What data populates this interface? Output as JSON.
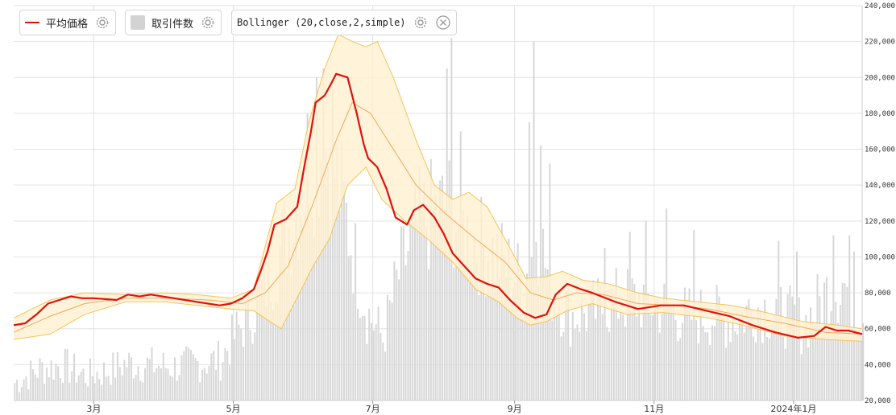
{
  "legend": {
    "avg_price_label": "平均価格",
    "volume_label": "取引件数",
    "bollinger_label": "Bollinger (20,close,2,simple)",
    "settings_icon": "gear-icon",
    "close_icon": "close-icon"
  },
  "colors": {
    "price_line": "#e0100d",
    "volume_bar": "#d6d6d6",
    "band_fill": "#fff1cf",
    "band_edge": "#f3c35a",
    "band_middle": "#f4a55a",
    "grid": "#e2e2e2"
  },
  "chart_data": {
    "type": "line",
    "y_axis": {
      "position": "right",
      "min": 20000,
      "max": 240000,
      "ticks": [
        "240,000",
        "220,000",
        "200,000",
        "180,000",
        "160,000",
        "140,000",
        "120,000",
        "100,000",
        "80,000",
        "60,000",
        "40,000",
        "20,000"
      ]
    },
    "x_axis": {
      "start": "2023-01-25",
      "end": "2024-01-31",
      "tick_labels": [
        {
          "label": "3月",
          "date": "2023-03-01"
        },
        {
          "label": "5月",
          "date": "2023-05-01"
        },
        {
          "label": "7月",
          "date": "2023-07-01"
        },
        {
          "label": "9月",
          "date": "2023-09-01"
        },
        {
          "label": "11月",
          "date": "2023-11-01"
        },
        {
          "label": "2024年1月",
          "date": "2024-01-01"
        }
      ]
    },
    "grid": true,
    "series": [
      {
        "name": "平均価格",
        "type": "line",
        "points": [
          [
            "2023-01-25",
            62000
          ],
          [
            "2023-01-30",
            63000
          ],
          [
            "2023-02-04",
            68000
          ],
          [
            "2023-02-09",
            74000
          ],
          [
            "2023-02-14",
            76000
          ],
          [
            "2023-02-19",
            78000
          ],
          [
            "2023-02-24",
            77000
          ],
          [
            "2023-03-01",
            77000
          ],
          [
            "2023-03-11",
            76000
          ],
          [
            "2023-03-16",
            79000
          ],
          [
            "2023-03-21",
            78000
          ],
          [
            "2023-03-26",
            79000
          ],
          [
            "2023-04-05",
            77000
          ],
          [
            "2023-04-15",
            75000
          ],
          [
            "2023-04-25",
            73000
          ],
          [
            "2023-04-30",
            74000
          ],
          [
            "2023-05-05",
            77000
          ],
          [
            "2023-05-10",
            82000
          ],
          [
            "2023-05-13",
            92000
          ],
          [
            "2023-05-16",
            103000
          ],
          [
            "2023-05-19",
            118000
          ],
          [
            "2023-05-24",
            121000
          ],
          [
            "2023-05-29",
            128000
          ],
          [
            "2023-06-01",
            150000
          ],
          [
            "2023-06-04",
            170000
          ],
          [
            "2023-06-06",
            186000
          ],
          [
            "2023-06-10",
            190000
          ],
          [
            "2023-06-13",
            197000
          ],
          [
            "2023-06-15",
            202000
          ],
          [
            "2023-06-20",
            200000
          ],
          [
            "2023-06-24",
            180000
          ],
          [
            "2023-06-27",
            163000
          ],
          [
            "2023-06-29",
            155000
          ],
          [
            "2023-07-03",
            150000
          ],
          [
            "2023-07-07",
            138000
          ],
          [
            "2023-07-11",
            122000
          ],
          [
            "2023-07-16",
            118000
          ],
          [
            "2023-07-19",
            126000
          ],
          [
            "2023-07-23",
            129000
          ],
          [
            "2023-07-28",
            122000
          ],
          [
            "2023-08-01",
            113000
          ],
          [
            "2023-08-05",
            102000
          ],
          [
            "2023-08-10",
            95000
          ],
          [
            "2023-08-15",
            88000
          ],
          [
            "2023-08-20",
            85000
          ],
          [
            "2023-08-25",
            83000
          ],
          [
            "2023-08-30",
            76000
          ],
          [
            "2023-09-05",
            69000
          ],
          [
            "2023-09-10",
            66000
          ],
          [
            "2023-09-15",
            68000
          ],
          [
            "2023-09-19",
            79000
          ],
          [
            "2023-09-24",
            85000
          ],
          [
            "2023-09-30",
            82000
          ],
          [
            "2023-10-05",
            80000
          ],
          [
            "2023-10-15",
            75000
          ],
          [
            "2023-10-25",
            71000
          ],
          [
            "2023-11-04",
            73000
          ],
          [
            "2023-11-14",
            73000
          ],
          [
            "2023-11-24",
            70000
          ],
          [
            "2023-12-04",
            67000
          ],
          [
            "2023-12-14",
            62000
          ],
          [
            "2023-12-24",
            58000
          ],
          [
            "2024-01-03",
            55000
          ],
          [
            "2024-01-10",
            56000
          ],
          [
            "2024-01-15",
            61000
          ],
          [
            "2024-01-20",
            59000
          ],
          [
            "2024-01-25",
            59000
          ],
          [
            "2024-01-31",
            57000
          ]
        ]
      },
      {
        "name": "取引件数",
        "type": "bar",
        "segments": [
          [
            "2023-01-25",
            30000
          ],
          [
            "2023-02-05",
            38000
          ],
          [
            "2023-02-15",
            40000
          ],
          [
            "2023-02-25",
            34000
          ],
          [
            "2023-03-05",
            36000
          ],
          [
            "2023-03-15",
            41000
          ],
          [
            "2023-03-25",
            40000
          ],
          [
            "2023-04-05",
            39000
          ],
          [
            "2023-04-15",
            41000
          ],
          [
            "2023-04-25",
            43000
          ],
          [
            "2023-05-02",
            58000
          ],
          [
            "2023-05-10",
            72000
          ],
          [
            "2023-05-18",
            95000
          ],
          [
            "2023-05-26",
            120000
          ],
          [
            "2023-06-02",
            145000
          ],
          [
            "2023-06-09",
            165000
          ],
          [
            "2023-06-15",
            145000
          ],
          [
            "2023-06-21",
            110000
          ],
          [
            "2023-06-28",
            70000
          ],
          [
            "2023-07-05",
            55000
          ],
          [
            "2023-07-12",
            90000
          ],
          [
            "2023-07-20",
            118000
          ],
          [
            "2023-07-28",
            125000
          ],
          [
            "2023-08-04",
            128000
          ],
          [
            "2023-08-12",
            110000
          ],
          [
            "2023-08-20",
            105000
          ],
          [
            "2023-08-28",
            95000
          ],
          [
            "2023-09-05",
            85000
          ],
          [
            "2023-09-10",
            120000
          ],
          [
            "2023-09-16",
            85000
          ],
          [
            "2023-09-25",
            68000
          ],
          [
            "2023-10-05",
            70000
          ],
          [
            "2023-10-15",
            75000
          ],
          [
            "2023-10-25",
            77000
          ],
          [
            "2023-11-04",
            73000
          ],
          [
            "2023-11-15",
            67000
          ],
          [
            "2023-11-25",
            68000
          ],
          [
            "2023-12-05",
            65000
          ],
          [
            "2023-12-15",
            73000
          ],
          [
            "2023-12-25",
            70000
          ],
          [
            "2024-01-05",
            62000
          ],
          [
            "2024-01-15",
            80000
          ],
          [
            "2024-01-22",
            86000
          ],
          [
            "2024-01-31",
            70000
          ]
        ],
        "spikes": [
          [
            "2023-06-02",
            180000
          ],
          [
            "2023-06-06",
            200000
          ],
          [
            "2023-06-09",
            205000
          ],
          [
            "2023-06-13",
            195000
          ],
          [
            "2023-08-04",
            222000
          ],
          [
            "2023-08-02",
            205000
          ],
          [
            "2023-08-08",
            170000
          ],
          [
            "2023-09-09",
            220000
          ],
          [
            "2023-09-07",
            175000
          ],
          [
            "2023-09-12",
            162000
          ],
          [
            "2023-09-16",
            152000
          ],
          [
            "2023-10-10",
            105000
          ],
          [
            "2023-10-21",
            114000
          ],
          [
            "2023-10-28",
            120000
          ],
          [
            "2023-11-06",
            127000
          ],
          [
            "2023-11-18",
            115000
          ],
          [
            "2023-12-25",
            109000
          ],
          [
            "2024-01-02",
            103000
          ],
          [
            "2024-01-18",
            112000
          ],
          [
            "2024-01-25",
            112000
          ],
          [
            "2024-01-27",
            103000
          ]
        ]
      },
      {
        "name": "Bollinger (20,close,2,simple)",
        "type": "band",
        "upper": [
          [
            "2023-01-25",
            66000
          ],
          [
            "2023-02-10",
            76000
          ],
          [
            "2023-02-25",
            80000
          ],
          [
            "2023-03-15",
            79000
          ],
          [
            "2023-04-01",
            80000
          ],
          [
            "2023-04-15",
            79000
          ],
          [
            "2023-04-30",
            77000
          ],
          [
            "2023-05-10",
            82000
          ],
          [
            "2023-05-20",
            130000
          ],
          [
            "2023-05-28",
            138000
          ],
          [
            "2023-06-03",
            175000
          ],
          [
            "2023-06-10",
            205000
          ],
          [
            "2023-06-16",
            224000
          ],
          [
            "2023-06-22",
            220000
          ],
          [
            "2023-06-28",
            217000
          ],
          [
            "2023-07-03",
            220000
          ],
          [
            "2023-07-10",
            200000
          ],
          [
            "2023-07-20",
            165000
          ],
          [
            "2023-07-28",
            140000
          ],
          [
            "2023-08-05",
            132000
          ],
          [
            "2023-08-12",
            136000
          ],
          [
            "2023-08-20",
            128000
          ],
          [
            "2023-08-30",
            105000
          ],
          [
            "2023-09-06",
            88000
          ],
          [
            "2023-09-15",
            89000
          ],
          [
            "2023-09-22",
            92000
          ],
          [
            "2023-10-01",
            87000
          ],
          [
            "2023-10-12",
            85000
          ],
          [
            "2023-10-25",
            80000
          ],
          [
            "2023-11-05",
            77000
          ],
          [
            "2023-11-20",
            75000
          ],
          [
            "2023-12-05",
            73000
          ],
          [
            "2023-12-20",
            69000
          ],
          [
            "2024-01-05",
            64000
          ],
          [
            "2024-01-20",
            62000
          ],
          [
            "2024-01-31",
            60000
          ]
        ],
        "middle": [
          [
            "2023-01-25",
            58000
          ],
          [
            "2023-02-10",
            67000
          ],
          [
            "2023-02-25",
            74000
          ],
          [
            "2023-03-15",
            77000
          ],
          [
            "2023-04-01",
            77000
          ],
          [
            "2023-04-20",
            76000
          ],
          [
            "2023-05-05",
            74000
          ],
          [
            "2023-05-15",
            80000
          ],
          [
            "2023-05-25",
            95000
          ],
          [
            "2023-06-05",
            130000
          ],
          [
            "2023-06-15",
            165000
          ],
          [
            "2023-06-22",
            186000
          ],
          [
            "2023-06-30",
            180000
          ],
          [
            "2023-07-10",
            160000
          ],
          [
            "2023-07-20",
            140000
          ],
          [
            "2023-08-01",
            125000
          ],
          [
            "2023-08-15",
            110000
          ],
          [
            "2023-08-28",
            97000
          ],
          [
            "2023-09-08",
            80000
          ],
          [
            "2023-09-18",
            76000
          ],
          [
            "2023-09-28",
            80000
          ],
          [
            "2023-10-10",
            79000
          ],
          [
            "2023-10-25",
            74000
          ],
          [
            "2023-11-10",
            73000
          ],
          [
            "2023-11-25",
            71000
          ],
          [
            "2023-12-10",
            67000
          ],
          [
            "2023-12-28",
            63000
          ],
          [
            "2024-01-15",
            58000
          ],
          [
            "2024-01-31",
            57000
          ]
        ],
        "lower": [
          [
            "2023-01-25",
            54000
          ],
          [
            "2023-02-10",
            57000
          ],
          [
            "2023-02-25",
            68000
          ],
          [
            "2023-03-15",
            75000
          ],
          [
            "2023-04-01",
            75000
          ],
          [
            "2023-04-15",
            73000
          ],
          [
            "2023-04-30",
            71000
          ],
          [
            "2023-05-10",
            70000
          ],
          [
            "2023-05-17",
            64000
          ],
          [
            "2023-05-22",
            60000
          ],
          [
            "2023-05-30",
            80000
          ],
          [
            "2023-06-05",
            95000
          ],
          [
            "2023-06-12",
            110000
          ],
          [
            "2023-06-20",
            140000
          ],
          [
            "2023-06-28",
            150000
          ],
          [
            "2023-07-05",
            132000
          ],
          [
            "2023-07-15",
            120000
          ],
          [
            "2023-07-25",
            110000
          ],
          [
            "2023-08-05",
            97000
          ],
          [
            "2023-08-15",
            82000
          ],
          [
            "2023-08-25",
            75000
          ],
          [
            "2023-09-02",
            66000
          ],
          [
            "2023-09-08",
            62000
          ],
          [
            "2023-09-15",
            64000
          ],
          [
            "2023-09-24",
            70000
          ],
          [
            "2023-10-05",
            74000
          ],
          [
            "2023-10-20",
            68000
          ],
          [
            "2023-11-05",
            69000
          ],
          [
            "2023-11-25",
            66000
          ],
          [
            "2023-12-10",
            62000
          ],
          [
            "2023-12-28",
            56000
          ],
          [
            "2024-01-15",
            54000
          ],
          [
            "2024-01-31",
            53000
          ]
        ]
      }
    ]
  }
}
